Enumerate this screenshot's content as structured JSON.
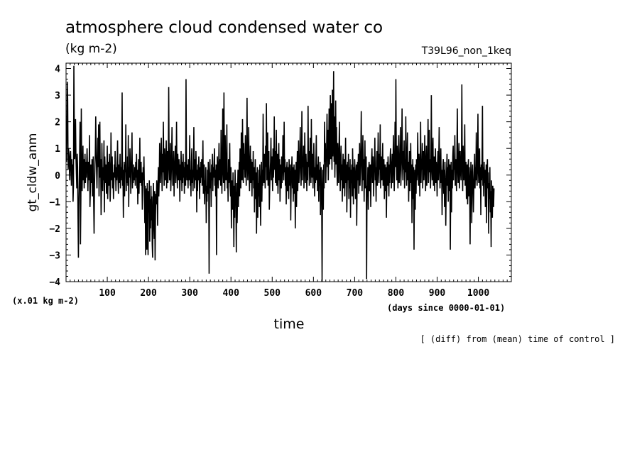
{
  "chart_data": {
    "type": "line",
    "title": "atmosphere cloud condensed water co",
    "units": "(kg m-2)",
    "run_name": "T39L96_non_1keq",
    "xlabel": "time",
    "x_units": "(days since 0000-01-01)",
    "ylabel": "gt_cldw_anm",
    "y_units": "(x.01 kg m-2)",
    "footnote": "[ (diff) from (mean) time of control ]",
    "xlim": [
      0,
      1080
    ],
    "ylim": [
      -4,
      4.2
    ],
    "x_ticks": [
      100,
      200,
      300,
      400,
      500,
      600,
      700,
      800,
      900,
      1000
    ],
    "y_ticks": [
      -4,
      -3,
      -2,
      -1,
      0,
      1,
      2,
      3,
      4
    ],
    "grid": false,
    "line_color": "#000000",
    "series": [
      {
        "x_start": 1,
        "x_step": 1,
        "values": [
          0.5,
          1.5,
          3.5,
          2.8,
          0.2,
          1.0,
          0.8,
          0.3,
          -0.2,
          0.7,
          0.9,
          0.3,
          -0.4,
          0.6,
          0.1,
          0.4,
          -1.0,
          -0.4,
          4.1,
          1.8,
          0.6,
          1.2,
          2.1,
          0.7,
          0.1,
          -0.5,
          0.8,
          0.3,
          -1.6,
          -3.1,
          -1.2,
          -0.3,
          0.9,
          2.0,
          -2.6,
          -0.9,
          2.5,
          0.3,
          -0.6,
          0.4,
          1.1,
          -0.2,
          0.6,
          -0.5,
          0.2,
          0.8,
          -0.3,
          0.5,
          -0.1,
          0.4,
          1.0,
          0.2,
          -0.6,
          0.5,
          -0.2,
          0.3,
          1.5,
          -1.2,
          -0.6,
          0.4,
          0.1,
          -0.3,
          0.6,
          -0.8,
          -0.2,
          0.7,
          -1.0,
          -2.2,
          -0.4,
          0.3,
          0.8,
          2.2,
          1.0,
          0.2,
          -0.5,
          0.5,
          1.4,
          0.3,
          1.9,
          -0.8,
          0.4,
          2.0,
          -0.1,
          0.6,
          -1.5,
          -0.4,
          1.2,
          0.0,
          -0.6,
          0.3,
          -0.2,
          1.3,
          -1.4,
          0.7,
          0.1,
          -0.3,
          0.4,
          -0.7,
          0.2,
          1.1,
          -0.9,
          -0.2,
          0.5,
          -0.4,
          0.8,
          0.2,
          -1.0,
          -0.4,
          1.6,
          0.3,
          -0.2,
          0.7,
          -0.5,
          0.1,
          -0.9,
          -0.3,
          0.4,
          -0.1,
          0.9,
          0.2,
          -0.6,
          0.3,
          -0.2,
          0.6,
          1.3,
          -0.1,
          -0.7,
          0.4,
          -0.3,
          0.2,
          0.8,
          -0.5,
          0.3,
          -0.2,
          0.5,
          3.1,
          -0.4,
          0.2,
          -1.6,
          -0.3,
          0.5,
          -0.8,
          0.4,
          0.1,
          1.9,
          -0.6,
          0.2,
          -0.3,
          0.7,
          -0.4,
          1.5,
          -1.2,
          0.3,
          -0.1,
          1.0,
          0.4,
          -0.7,
          0.2,
          0.6,
          1.6,
          -0.5,
          0.1,
          -0.3,
          0.4,
          -0.2,
          0.3,
          0.1,
          -0.4,
          0.5,
          -0.1,
          0.8,
          -0.5,
          0.2,
          -1.1,
          -0.2,
          0.6,
          -0.7,
          0.3,
          1.4,
          -0.3,
          0.2,
          0.5,
          -0.4,
          0.1,
          -1.3,
          -0.6,
          0.3,
          -0.2,
          0.7,
          -0.5,
          -1.8,
          -0.4,
          -3.0,
          -1.2,
          -0.5,
          -2.8,
          -0.3,
          -1.6,
          -3.0,
          -0.6,
          -1.4,
          -0.2,
          -2.5,
          -0.9,
          -2.0,
          -0.4,
          -1.7,
          -0.8,
          -2.6,
          -3.1,
          -1.0,
          -0.3,
          -1.9,
          -2.4,
          -0.6,
          -3.2,
          -1.5,
          -0.7,
          -1.1,
          -0.2,
          -0.6,
          -1.9,
          -0.4,
          0.3,
          -0.8,
          -0.2,
          1.2,
          0.4,
          -0.3,
          0.6,
          1.4,
          0.2,
          -0.6,
          0.8,
          0.1,
          2.0,
          0.5,
          -0.4,
          1.0,
          0.3,
          -0.2,
          0.7,
          1.3,
          -0.5,
          0.2,
          0.9,
          -0.3,
          0.4,
          3.3,
          0.6,
          -0.2,
          0.3,
          1.2,
          -0.6,
          -0.1,
          0.7,
          1.8,
          0.3,
          -0.4,
          0.2,
          0.9,
          -0.8,
          0.1,
          0.5,
          1.1,
          -0.3,
          0.4,
          2.0,
          0.2,
          -0.5,
          0.8,
          0.3,
          -0.2,
          0.6,
          0.1,
          -1.0,
          0.4,
          -0.2,
          0.9,
          0.2,
          -0.6,
          0.5,
          -0.3,
          0.8,
          -0.1,
          0.3,
          -0.7,
          0.5,
          0.2,
          -0.4,
          3.6,
          0.7,
          -0.2,
          0.4,
          0.1,
          -0.5,
          0.6,
          -0.2,
          0.3,
          1.5,
          -0.4,
          0.2,
          -0.8,
          0.5,
          1.0,
          -0.3,
          0.2,
          -0.6,
          0.4,
          1.8,
          0.1,
          -0.5,
          0.6,
          -0.2,
          0.9,
          0.3,
          -1.4,
          0.2,
          -0.6,
          0.4,
          -0.2,
          0.7,
          0.1,
          -0.9,
          0.3,
          -0.3,
          0.5,
          -0.1,
          0.6,
          -0.4,
          0.2,
          1.3,
          -0.7,
          0.1,
          0.4,
          -1.1,
          -0.2,
          -0.6,
          0.3,
          -1.8,
          -0.4,
          -1.0,
          0.2,
          -0.7,
          0.5,
          -0.3,
          -3.7,
          -0.2,
          0.6,
          -0.5,
          0.1,
          -1.2,
          0.4,
          -0.2,
          0.8,
          -0.6,
          0.3,
          -0.1,
          0.5,
          1.0,
          -0.4,
          0.2,
          -0.8,
          0.4,
          -3.0,
          -0.3,
          0.7,
          0.2,
          -0.5,
          0.3,
          1.2,
          -0.2,
          0.1,
          0.6,
          -0.4,
          1.7,
          0.3,
          -0.7,
          0.5,
          2.5,
          0.2,
          -0.3,
          3.1,
          0.6,
          -0.6,
          1.5,
          0.2,
          -0.2,
          0.4,
          1.9,
          -0.5,
          0.1,
          -1.0,
          0.6,
          -0.3,
          0.2,
          1.2,
          -0.4,
          -0.8,
          0.3,
          -2.0,
          -0.6,
          -0.2,
          -1.3,
          0.1,
          -0.9,
          -2.7,
          -0.4,
          -1.6,
          0.2,
          -0.6,
          -1.1,
          -2.9,
          -0.3,
          -1.8,
          -0.7,
          0.2,
          -1.2,
          -0.4,
          0.5,
          -0.8,
          1.0,
          0.3,
          -0.5,
          1.6,
          0.4,
          -0.2,
          2.1,
          0.6,
          -0.3,
          1.2,
          0.2,
          0.8,
          -0.1,
          1.5,
          0.5,
          -0.4,
          0.9,
          2.9,
          0.3,
          -0.2,
          0.7,
          1.8,
          0.1,
          -0.6,
          0.4,
          1.1,
          -0.3,
          0.6,
          0.2,
          -0.8,
          0.5,
          -0.2,
          0.9,
          -0.5,
          0.3,
          -1.4,
          -0.2,
          0.6,
          -0.9,
          0.1,
          -2.2,
          -0.4,
          0.3,
          -1.6,
          -0.3,
          -0.8,
          0.2,
          -1.2,
          0.4,
          -0.6,
          -1.9,
          -0.2,
          0.5,
          -1.0,
          0.2,
          -0.4,
          2.3,
          0.4,
          -0.3,
          0.8,
          0.2,
          -0.5,
          1.1,
          0.3,
          2.7,
          -0.2,
          0.6,
          1.6,
          -0.4,
          0.2,
          0.9,
          -1.3,
          -0.5,
          0.1,
          0.5,
          1.4,
          -0.2,
          0.7,
          0.3,
          -0.6,
          1.0,
          -0.1,
          0.4,
          2.2,
          0.2,
          0.9,
          -0.3,
          0.5,
          1.7,
          -0.4,
          0.2,
          0.8,
          -0.7,
          0.3,
          1.2,
          -0.2,
          0.6,
          -1.0,
          0.1,
          0.4,
          -0.5,
          0.7,
          -0.3,
          0.2,
          1.5,
          0.4,
          -0.2,
          2.0,
          0.1,
          0.6,
          -0.4,
          0.3,
          -1.1,
          0.2,
          0.5,
          -0.6,
          -0.2,
          0.3,
          -0.9,
          0.6,
          0.1,
          -0.4,
          0.4,
          -1.7,
          -0.3,
          0.2,
          0.7,
          -0.5,
          0.3,
          -1.0,
          -0.2,
          0.4,
          -0.7,
          0.2,
          -2.0,
          -0.4,
          0.5,
          -1.2,
          0.1,
          0.9,
          -0.6,
          0.3,
          1.3,
          -0.3,
          0.2,
          0.6,
          1.8,
          0.1,
          -0.4,
          0.5,
          2.4,
          -0.2,
          0.7,
          0.3,
          1.1,
          -0.5,
          0.2,
          1.6,
          0.4,
          -0.3,
          0.8,
          0.2,
          -0.6,
          0.5,
          -0.2,
          2.6,
          0.3,
          0.9,
          -0.4,
          0.1,
          1.4,
          0.6,
          -0.3,
          2.1,
          0.2,
          -0.1,
          0.8,
          -0.5,
          0.4,
          1.2,
          0.2,
          -0.8,
          0.3,
          -0.3,
          0.6,
          1.5,
          -0.2,
          0.4,
          -0.6,
          0.1,
          0.7,
          -1.0,
          0.2,
          -0.4,
          0.5,
          -1.5,
          -0.2,
          0.3,
          -0.8,
          -4.0,
          -0.6,
          0.2,
          -1.3,
          0.4,
          -0.5,
          2.0,
          0.5,
          1.2,
          -0.3,
          0.6,
          1.0,
          2.3,
          0.3,
          1.7,
          -0.2,
          0.8,
          2.5,
          0.4,
          1.3,
          3.0,
          0.6,
          2.7,
          1.2,
          0.2,
          3.2,
          0.7,
          1.5,
          3.9,
          0.5,
          2.2,
          -0.1,
          1.0,
          2.8,
          0.4,
          1.8,
          0.2,
          -0.4,
          1.2,
          0.6,
          -0.3,
          0.9,
          2.0,
          0.2,
          -0.6,
          0.5,
          1.1,
          -0.2,
          0.4,
          -1.0,
          0.3,
          0.8,
          -0.5,
          0.1,
          0.6,
          -0.8,
          0.2,
          1.4,
          -0.3,
          0.4,
          -1.4,
          -0.4,
          0.5,
          -0.2,
          0.8,
          -0.9,
          0.3,
          -0.5,
          0.6,
          -1.6,
          0.2,
          -0.3,
          0.4,
          -0.8,
          1.0,
          0.2,
          -1.1,
          0.3,
          -0.5,
          0.6,
          0.1,
          -0.9,
          -0.3,
          0.4,
          -1.9,
          -0.4,
          0.5,
          -0.2,
          0.8,
          -0.7,
          0.3,
          1.2,
          -0.4,
          0.2,
          0.9,
          2.4,
          0.3,
          -0.6,
          0.5,
          1.5,
          -0.2,
          0.6,
          -1.0,
          0.4,
          1.3,
          -0.5,
          0.2,
          0.7,
          -3.9,
          -0.4,
          -0.8,
          0.3,
          -1.3,
          0.1,
          0.5,
          -0.6,
          -0.2,
          0.4,
          -1.2,
          -0.1,
          0.6,
          1.0,
          -0.3,
          0.2,
          0.7,
          -0.8,
          0.1,
          0.4,
          1.4,
          -0.2,
          0.3,
          -1.0,
          0.5,
          0.9,
          -0.4,
          0.2,
          1.6,
          0.4,
          -0.3,
          0.8,
          0.2,
          1.9,
          -0.5,
          0.3,
          0.7,
          -0.2,
          0.5,
          1.2,
          -0.4,
          0.1,
          0.6,
          -0.9,
          0.2,
          0.4,
          -0.6,
          0.3,
          -1.6,
          -0.2,
          0.5,
          -0.4,
          0.7,
          0.2,
          -0.8,
          0.4,
          -0.3,
          0.6,
          1.0,
          0.3,
          -0.5,
          0.2,
          0.8,
          -0.3,
          0.4,
          1.5,
          0.2,
          -0.6,
          0.5,
          2.0,
          0.3,
          3.6,
          0.7,
          -0.2,
          1.1,
          0.4,
          -0.5,
          0.8,
          1.5,
          -0.3,
          0.2,
          0.6,
          1.8,
          -0.4,
          0.3,
          1.0,
          2.5,
          0.4,
          -0.2,
          0.9,
          0.2,
          1.3,
          -0.5,
          0.6,
          0.1,
          2.2,
          0.3,
          -0.4,
          0.7,
          1.6,
          -0.2,
          0.5,
          -1.0,
          0.2,
          0.9,
          -0.6,
          0.3,
          1.2,
          -0.3,
          0.4,
          -1.8,
          -0.2,
          0.6,
          -0.9,
          0.3,
          -2.8,
          -0.5,
          0.2,
          -1.3,
          0.4,
          -0.7,
          0.6,
          -0.2,
          0.4,
          1.6,
          0.1,
          -0.4,
          0.8,
          0.3,
          -0.8,
          0.5,
          2.0,
          -0.3,
          0.6,
          0.2,
          1.2,
          -0.5,
          0.4,
          0.9,
          -0.2,
          0.3,
          1.5,
          0.2,
          -0.6,
          0.5,
          1.1,
          -0.4,
          0.2,
          0.8,
          2.1,
          -0.3,
          0.4,
          1.7,
          0.1,
          0.6,
          -0.5,
          0.3,
          3.0,
          0.5,
          -0.2,
          0.9,
          1.4,
          -0.4,
          0.2,
          0.7,
          -0.6,
          0.3,
          1.0,
          -0.3,
          0.5,
          0.1,
          -0.8,
          0.4,
          0.9,
          -0.2,
          0.6,
          1.8,
          0.2,
          -0.5,
          0.4,
          1.0,
          -0.3,
          0.2,
          -1.5,
          -0.4,
          0.3,
          0.6,
          -0.7,
          0.2,
          -1.2,
          0.5,
          -0.2,
          -1.9,
          -0.6,
          0.2,
          0.8,
          -0.4,
          0.3,
          -1.0,
          0.6,
          0.1,
          -0.6,
          0.4,
          -2.8,
          -0.3,
          0.5,
          -1.4,
          0.2,
          -0.5,
          0.7,
          1.1,
          -0.2,
          0.4,
          0.2,
          1.5,
          -0.4,
          0.6,
          0.3,
          -0.6,
          0.8,
          2.5,
          0.2,
          -0.3,
          0.5,
          1.2,
          -0.5,
          0.4,
          0.9,
          0.1,
          -0.2,
          0.6,
          3.4,
          0.3,
          -0.6,
          1.1,
          0.4,
          -0.2,
          0.7,
          1.9,
          -0.4,
          0.2,
          0.5,
          -0.9,
          -0.3,
          0.4,
          -1.1,
          0.2,
          0.6,
          -0.8,
          0.3,
          -0.4,
          -2.6,
          -0.2,
          0.5,
          -0.6,
          -1.8,
          0.1,
          0.4,
          -0.3,
          -1.4,
          -0.6,
          0.2,
          0.8,
          -0.5,
          0.3,
          -0.2,
          1.6,
          0.1,
          -0.4,
          0.5,
          2.3,
          0.2,
          -0.3,
          0.8,
          1.0,
          -0.5,
          0.3,
          -1.5,
          0.4,
          -0.2,
          0.6,
          2.6,
          -0.4,
          0.3,
          -0.8,
          0.5,
          -0.3,
          0.2,
          -1.2,
          -0.4,
          0.4,
          -1.8,
          0.2,
          0.6,
          -0.5,
          0.1,
          -2.2,
          -0.3,
          -0.9,
          0.3,
          -1.4,
          -0.6,
          -2.7,
          -0.2,
          -1.0,
          -1.6,
          -0.4,
          -0.8,
          -1.2,
          -0.5
        ]
      }
    ]
  }
}
